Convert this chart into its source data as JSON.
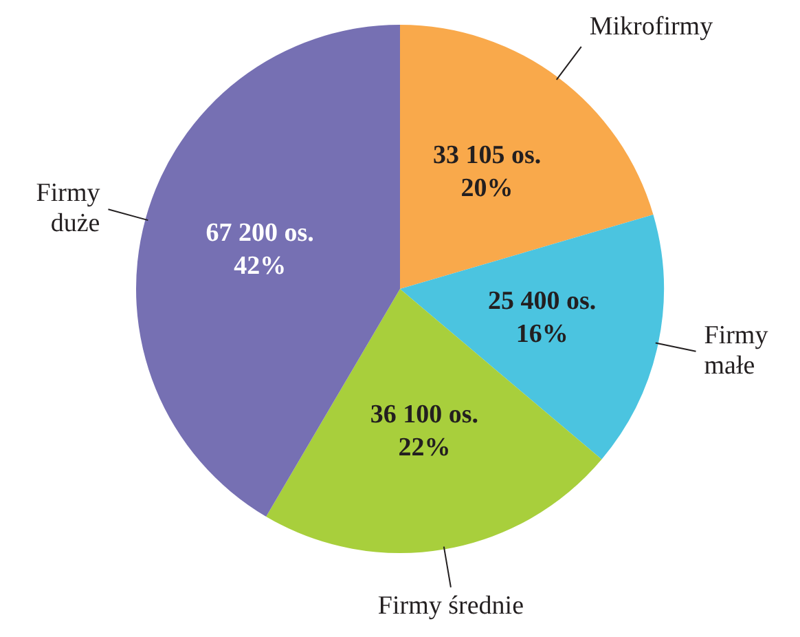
{
  "chart_data": {
    "type": "pie",
    "categories": [
      "Mikrofirmy",
      "Firmy małe",
      "Firmy średnie",
      "Firmy duże"
    ],
    "values": [
      33105,
      25400,
      36100,
      67200
    ],
    "colors": [
      "#f9a94b",
      "#4bc4e0",
      "#a8cf3c",
      "#7670b3"
    ],
    "value_labels": [
      "33 105 os.\n20%",
      "25 400 os.\n16%",
      "36 100 os.\n22%",
      "67 200 os.\n42%"
    ],
    "legend": false
  }
}
